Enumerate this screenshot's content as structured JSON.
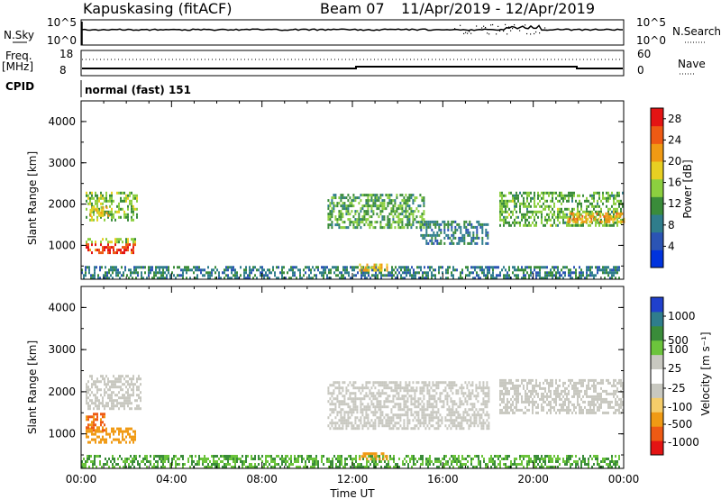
{
  "header": {
    "station": "Kapuskasing (fitACF)",
    "beam": "Beam 07",
    "date_range": "11/Apr/2019 - 12/Apr/2019"
  },
  "summary_panel": {
    "left_labels": {
      "nsky": "N.Sky",
      "freq": "Freq.",
      "freq_unit": "[MHz]",
      "cpid": "CPID"
    },
    "right_labels": {
      "nsearch": "N.Search",
      "nave": "Nave"
    },
    "noise_ticks_left": [
      "10^5",
      "10^0"
    ],
    "noise_ticks_right": [
      "10^5",
      "10^0"
    ],
    "freq_ticks": [
      "18",
      "8"
    ],
    "nave_ticks": [
      "60",
      "0"
    ],
    "cpid_text": "normal (fast) 151"
  },
  "colors": {
    "power": [
      "#0033dd",
      "#2b54b4",
      "#2f7d8c",
      "#3a8c3a",
      "#8ccf3f",
      "#e8cf22",
      "#f09a14",
      "#ee5a14",
      "#e41414"
    ],
    "velocity": [
      "#e41414",
      "#ee5a14",
      "#f09a14",
      "#f5cd6a",
      "#c8c8c0",
      "#c8c8c0",
      "#6cc43c",
      "#3a8c3a",
      "#2f7d8c",
      "#2b54b4",
      "#2040cc"
    ]
  },
  "chart_data": [
    {
      "type": "heatmap",
      "name": "power",
      "xlabel": "",
      "ylabel": "Slant Range [km]",
      "x_range_hours": [
        0,
        24
      ],
      "ylim": [
        180,
        4500
      ],
      "yticks": [
        "4000",
        "3000",
        "2000",
        "1000"
      ],
      "colorbar_label": "Power [dB]",
      "colorbar_ticks": [
        "28",
        "24",
        "20",
        "16",
        "12",
        "8",
        "4"
      ],
      "colorbar_range": [
        0,
        30
      ],
      "regions": [
        {
          "t0": 0.2,
          "t1": 2.5,
          "r0": 1600,
          "r1": 2300,
          "value": 14
        },
        {
          "t0": 0.3,
          "t1": 1.2,
          "r0": 1750,
          "r1": 1950,
          "value": 20
        },
        {
          "t0": 0.2,
          "t1": 2.4,
          "r0": 800,
          "r1": 1050,
          "value": 28
        },
        {
          "t0": 0.2,
          "t1": 2.4,
          "r0": 1050,
          "r1": 1180,
          "value": 16
        },
        {
          "t0": 0.0,
          "t1": 23.8,
          "r0": 200,
          "r1": 500,
          "value": 8
        },
        {
          "t0": 12.3,
          "t1": 13.5,
          "r0": 420,
          "r1": 560,
          "value": 20
        },
        {
          "t0": 10.9,
          "t1": 15.2,
          "r0": 1400,
          "r1": 2250,
          "value": 12
        },
        {
          "t0": 15.0,
          "t1": 18.0,
          "r0": 1050,
          "r1": 1600,
          "value": 8
        },
        {
          "t0": 18.5,
          "t1": 24.0,
          "r0": 1500,
          "r1": 2300,
          "value": 13
        },
        {
          "t0": 21.5,
          "t1": 24.0,
          "r0": 1550,
          "r1": 1800,
          "value": 22
        }
      ]
    },
    {
      "type": "heatmap",
      "name": "velocity",
      "xlabel": "Time UT",
      "ylabel": "Slant Range [km]",
      "x_range_hours": [
        0,
        24
      ],
      "xticks": [
        "00:00",
        "04:00",
        "08:00",
        "12:00",
        "16:00",
        "20:00",
        "00:00"
      ],
      "ylim": [
        180,
        4500
      ],
      "yticks": [
        "4000",
        "3000",
        "2000",
        "1000"
      ],
      "colorbar_label": "Velocity [m s⁻¹]",
      "colorbar_ticks": [
        "1000",
        "500",
        "100",
        "25",
        "-25",
        "-100",
        "-500",
        "-1000"
      ],
      "regions": [
        {
          "t0": 0.2,
          "t1": 2.6,
          "r0": 1600,
          "r1": 2400,
          "value": 0
        },
        {
          "t0": 0.2,
          "t1": 2.4,
          "r0": 800,
          "r1": 1150,
          "value": -150
        },
        {
          "t0": 0.2,
          "t1": 1.0,
          "r0": 1100,
          "r1": 1500,
          "value": -400
        },
        {
          "t0": 0.0,
          "t1": 23.8,
          "r0": 200,
          "r1": 500,
          "value": 60
        },
        {
          "t0": 12.3,
          "t1": 13.5,
          "r0": 420,
          "r1": 560,
          "value": -120
        },
        {
          "t0": 10.9,
          "t1": 18.0,
          "r0": 1100,
          "r1": 2250,
          "value": 0
        },
        {
          "t0": 18.5,
          "t1": 24.0,
          "r0": 1500,
          "r1": 2300,
          "value": 0
        }
      ]
    }
  ]
}
